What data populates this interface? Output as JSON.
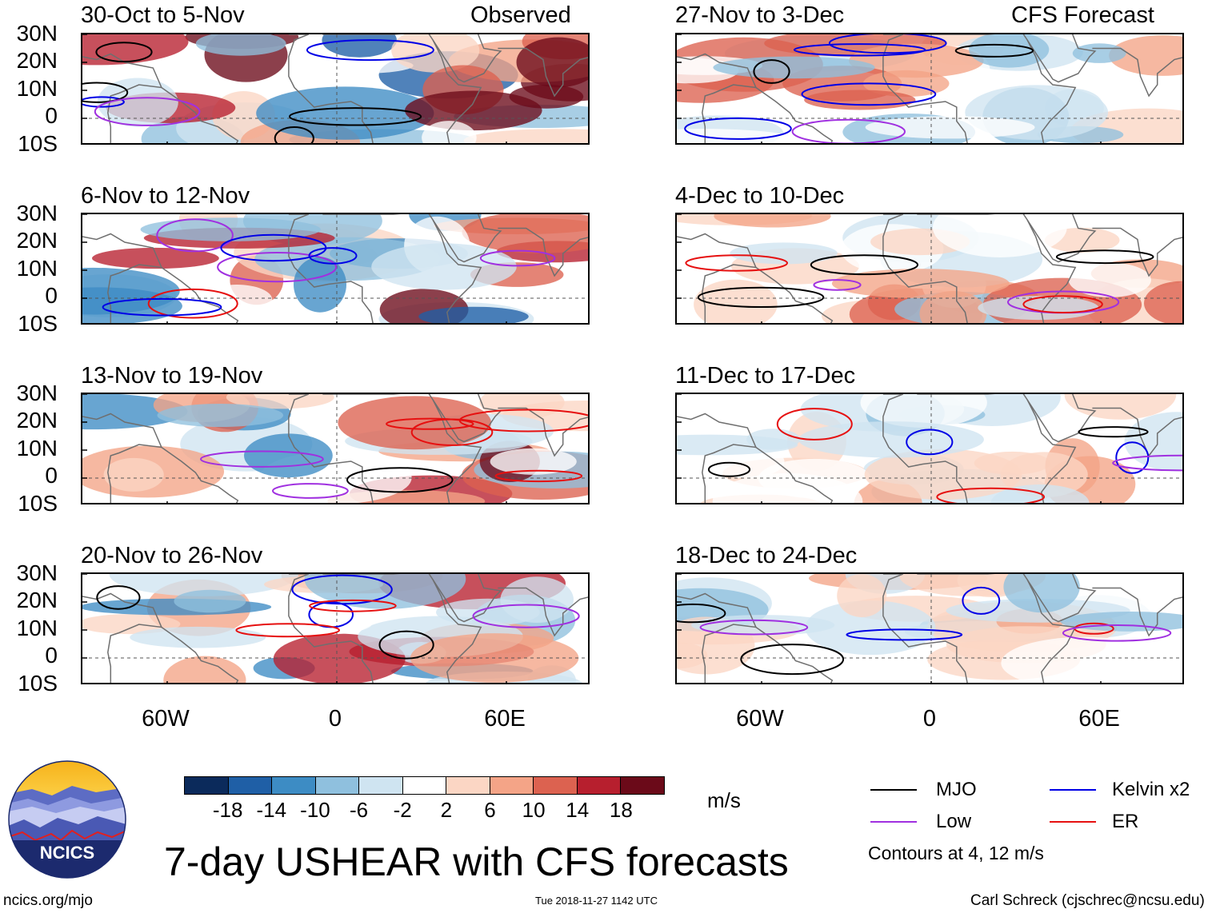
{
  "panels": {
    "left": [
      {
        "title": "30-Oct to 5-Nov",
        "tag": "Observed"
      },
      {
        "title": "6-Nov to 12-Nov",
        "tag": ""
      },
      {
        "title": "13-Nov to 19-Nov",
        "tag": ""
      },
      {
        "title": "20-Nov to 26-Nov",
        "tag": ""
      }
    ],
    "right": [
      {
        "title": "27-Nov to 3-Dec",
        "tag": "CFS Forecast"
      },
      {
        "title": "4-Dec to 10-Dec",
        "tag": ""
      },
      {
        "title": "11-Dec to 17-Dec",
        "tag": ""
      },
      {
        "title": "18-Dec to 24-Dec",
        "tag": ""
      }
    ]
  },
  "latitude_labels": [
    "30N",
    "20N",
    "10N",
    "0",
    "10S"
  ],
  "longitude_labels": [
    "60W",
    "0",
    "60E"
  ],
  "colorbar": {
    "labels": [
      "-18",
      "-14",
      "-10",
      "-6",
      "-2",
      "2",
      "6",
      "10",
      "14",
      "18"
    ],
    "colors": [
      "#0b2a5b",
      "#1f5fa6",
      "#3d8cc4",
      "#8fc0de",
      "#cfe4f1",
      "#ffffff",
      "#fbd6c4",
      "#f4a487",
      "#dc6250",
      "#b71f2e",
      "#6b0a19"
    ],
    "units": "m/s"
  },
  "legend": {
    "items": [
      {
        "label": "MJO",
        "color": "#000000"
      },
      {
        "label": "Kelvin x2",
        "color": "#0000e6"
      },
      {
        "label": "Low",
        "color": "#a030e0"
      },
      {
        "label": "ER",
        "color": "#e61010"
      }
    ],
    "contours_note": "Contours at 4, 12 m/s"
  },
  "logo_text": "NCICS",
  "main_title": "7-day USHEAR with CFS forecasts",
  "footer": {
    "url": "ncics.org/mjo",
    "timestamp": "Tue 2018-11-27 1142 UTC",
    "author": "Carl Schreck (cjschrec@ncsu.edu)"
  }
}
